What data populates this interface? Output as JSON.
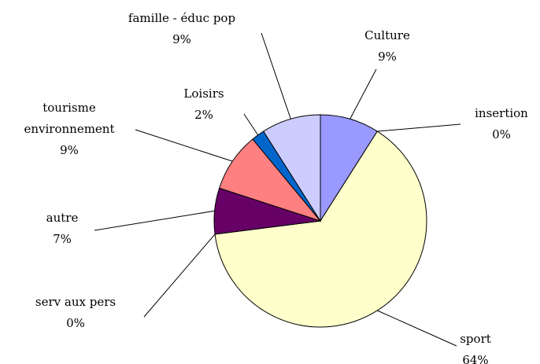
{
  "chart_data": {
    "type": "pie",
    "categories": [
      "Culture",
      "insertion",
      "sport",
      "serv aux pers",
      "autre",
      "tourisme environnement",
      "Loisirs",
      "famille - éduc pop"
    ],
    "values": [
      9,
      0,
      64,
      0,
      7,
      9,
      2,
      9
    ],
    "value_labels": [
      "9%",
      "0%",
      "64%",
      "0%",
      "7%",
      "9%",
      "2%",
      "9%"
    ],
    "colors": [
      "#9999ff",
      "#993366",
      "#ffffcc",
      "#ccffff",
      "#660066",
      "#ff8080",
      "#0066cc",
      "#ccccff"
    ]
  }
}
